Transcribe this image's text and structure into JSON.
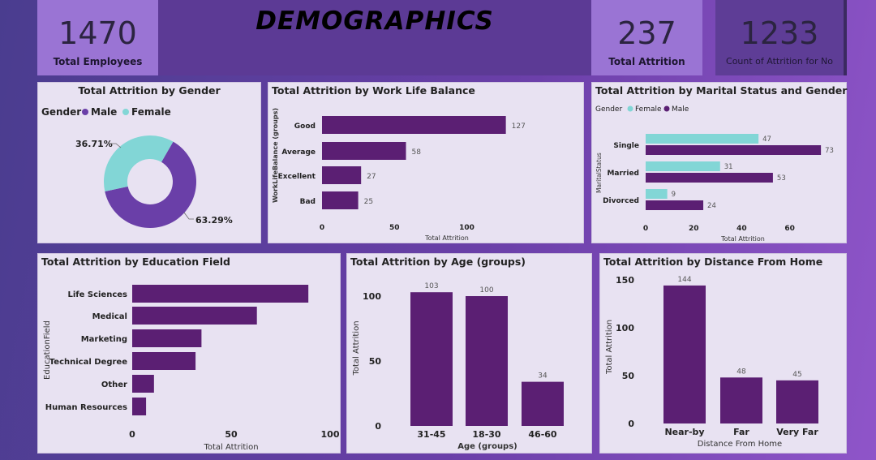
{
  "title": "DEMOGRAPHICS",
  "kpis": {
    "total_employees": {
      "value": "1470",
      "label": "Total Employees"
    },
    "total_attrition": {
      "value": "237",
      "label": "Total Attrition"
    },
    "count_no": {
      "value": "1233",
      "label": "Count of Attrition for No"
    }
  },
  "colors": {
    "primary": "#5b1f73",
    "teal": "#7fd6d6",
    "male": "#6a3fa8",
    "female": "#82d6d6"
  },
  "chart_data": [
    {
      "id": "gender",
      "type": "pie",
      "title": "Total Attrition by Gender",
      "legend_title": "Gender",
      "legend": [
        "Male",
        "Female"
      ],
      "slices": [
        {
          "name": "Male",
          "percent": 63.29,
          "label": "63.29%",
          "color": "#6a3fa8"
        },
        {
          "name": "Female",
          "percent": 36.71,
          "label": "36.71%",
          "color": "#82d6d6"
        }
      ]
    },
    {
      "id": "worklife",
      "type": "bar",
      "orientation": "horizontal",
      "title": "Total Attrition by Work Life Balance",
      "categories": [
        "Good",
        "Average",
        "Excellent",
        "Bad"
      ],
      "values": [
        127,
        58,
        27,
        25
      ],
      "value_labels": [
        "127",
        "58",
        "27",
        "25"
      ],
      "xlabel": "Total Attrition",
      "ylabel": "WorkLifeBalance (groups)",
      "xticks": [
        "0",
        "50",
        "100"
      ],
      "xlim": [
        0,
        130
      ]
    },
    {
      "id": "marital",
      "type": "bar",
      "orientation": "horizontal",
      "title": "Total Attrition by Marital Status and Gender",
      "legend_title": "Gender",
      "legend": [
        "Female",
        "Male"
      ],
      "categories": [
        "Single",
        "Married",
        "Divorced"
      ],
      "series": [
        {
          "name": "Female",
          "values": [
            47,
            31,
            9
          ],
          "labels": [
            "47",
            "31",
            "9"
          ]
        },
        {
          "name": "Male",
          "values": [
            73,
            53,
            24
          ],
          "labels": [
            "73",
            "53",
            "24"
          ]
        }
      ],
      "xlabel": "Total Attrition",
      "ylabel": "MaritalStatus",
      "xticks": [
        "0",
        "20",
        "40",
        "60"
      ],
      "xlim": [
        0,
        76
      ]
    },
    {
      "id": "education",
      "type": "bar",
      "orientation": "horizontal",
      "title": "Total Attrition by Education Field",
      "categories": [
        "Life Sciences",
        "Medical",
        "Marketing",
        "Technical Degree",
        "Other",
        "Human Resources"
      ],
      "values": [
        89,
        63,
        35,
        32,
        11,
        7
      ],
      "xlabel": "Total Attrition",
      "ylabel": "EducationField",
      "xticks": [
        "0",
        "50",
        "100"
      ],
      "xlim": [
        0,
        100
      ]
    },
    {
      "id": "age",
      "type": "bar",
      "orientation": "vertical",
      "title": "Total Attrition by Age (groups)",
      "categories": [
        "31-45",
        "18-30",
        "46-60"
      ],
      "values": [
        103,
        100,
        34
      ],
      "value_labels": [
        "103",
        "100",
        "34"
      ],
      "xlabel": "Age (groups)",
      "ylabel": "Total Attrition",
      "yticks": [
        "0",
        "50",
        "100"
      ],
      "ylim": [
        0,
        120
      ]
    },
    {
      "id": "distance",
      "type": "bar",
      "orientation": "vertical",
      "title": "Total Attrition by Distance From Home",
      "categories": [
        "Near-by",
        "Far",
        "Very Far"
      ],
      "values": [
        144,
        48,
        45
      ],
      "value_labels": [
        "144",
        "48",
        "45"
      ],
      "xlabel": "Distance From Home",
      "ylabel": "Total Attrition",
      "yticks": [
        "0",
        "50",
        "100",
        "150"
      ],
      "ylim": [
        0,
        160
      ]
    }
  ]
}
